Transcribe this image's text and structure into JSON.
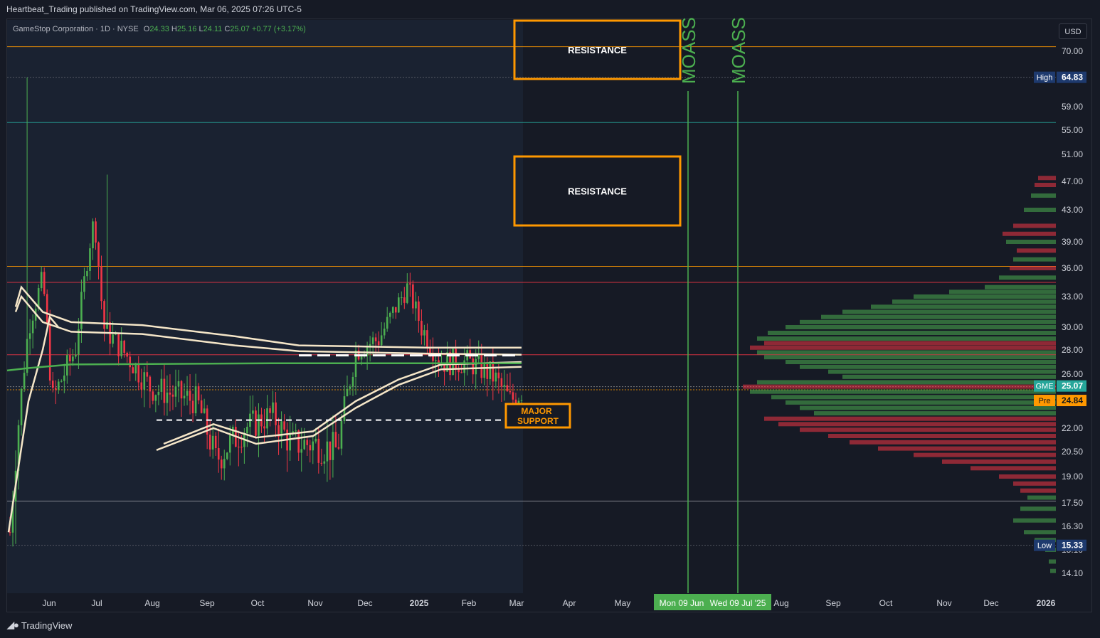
{
  "header": {
    "published_by": "Heartbeat_Trading published on TradingView.com, Mar 06, 2025 07:26 UTC-5"
  },
  "symbol": {
    "name": "GameStop Corporation · 1D · NYSE",
    "o_label": "O",
    "o": "24.33",
    "h_label": "H",
    "h": "25.16",
    "l_label": "L",
    "l": "24.11",
    "c_label": "C",
    "c": "25.07",
    "change": "+0.77 (+3.17%)"
  },
  "currency": "USD",
  "footer": {
    "brand": "TradingView"
  },
  "chart_data": {
    "type": "candlestick",
    "price_scale": {
      "ticks": [
        "70.00",
        "59.00",
        "55.00",
        "51.00",
        "47.00",
        "43.00",
        "39.00",
        "36.00",
        "33.00",
        "30.00",
        "28.00",
        "26.00",
        "22.00",
        "20.50",
        "19.00",
        "17.50",
        "16.30",
        "15.10",
        "14.10"
      ]
    },
    "price_badges": [
      {
        "label": "High",
        "value": "64.83",
        "color": "#1e3a6e"
      },
      {
        "label": "GME",
        "value": "25.07",
        "color": "#26a69a"
      },
      {
        "label": "Pre",
        "value": "24.84",
        "color": "#ff9800"
      },
      {
        "label": "Low",
        "value": "15.33",
        "color": "#1e3a6e"
      }
    ],
    "time_axis": [
      "Jun",
      "Jul",
      "Aug",
      "Sep",
      "Oct",
      "Nov",
      "Dec",
      "2025",
      "Feb",
      "Mar",
      "Apr",
      "May",
      "Aug",
      "Sep",
      "Oct",
      "Nov",
      "Dec",
      "2026"
    ],
    "time_badges": [
      "Mon 09 Jun",
      "Wed 09 Jul '25"
    ],
    "annotations": {
      "resistance_1": "RESISTANCE",
      "resistance_2": "RESISTANCE",
      "major_support": "MAJOR SUPPORT",
      "moass_1": "MOASS",
      "moass_2": "MOASS"
    },
    "horizontal_levels": [
      70.9,
      64.83,
      56.3,
      36.2,
      34.5,
      27.6,
      25.07,
      24.84,
      17.6,
      15.33
    ],
    "colors": {
      "up": "#4caf50",
      "down": "#f23645",
      "resistance": "#ff9800",
      "moass": "#4caf50",
      "vwap": "#f5e6c8",
      "ma": "#4caf50"
    }
  }
}
